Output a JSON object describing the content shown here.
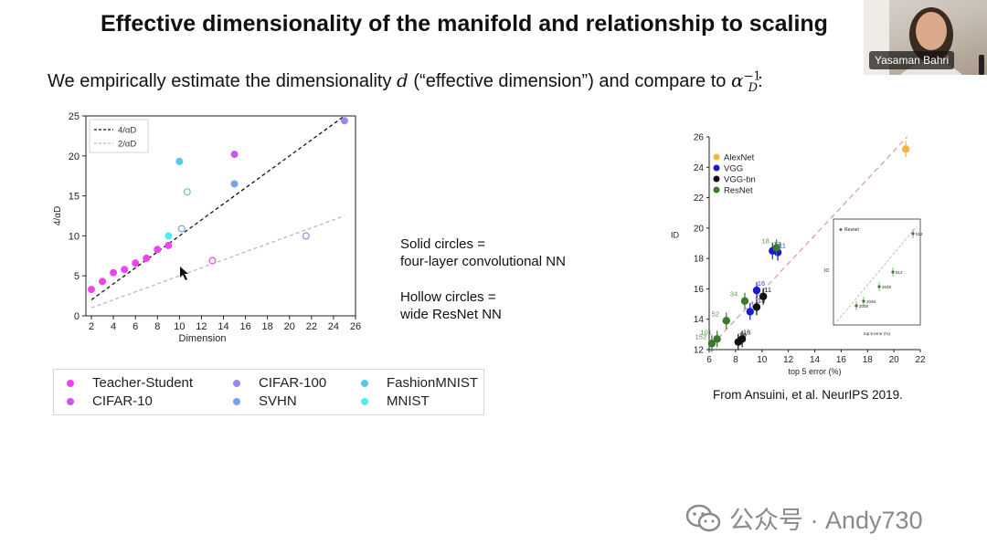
{
  "slide": {
    "title": "Effective dimensionality of the manifold and relationship to scaling",
    "subtitle_pre": "We empirically estimate the dimensionality ",
    "subtitle_var": "d",
    "subtitle_mid": " (“effective dimension”) and compare to ",
    "subtitle_alpha": "α",
    "subtitle_sup": "−1",
    "subtitle_sub": "D",
    "subtitle_end": ":"
  },
  "video": {
    "participant_name": "Yasaman Bahri"
  },
  "description": {
    "solid_line1": "Solid circles  =",
    "solid_line2": "four-layer convolutional NN",
    "hollow_line1": "Hollow circles =",
    "hollow_line2": "wide ResNet NN"
  },
  "legend": [
    {
      "label": "Teacher-Student",
      "color": "#ee44ee"
    },
    {
      "label": "CIFAR-10",
      "color": "#cc55ee"
    },
    {
      "label": "CIFAR-100",
      "color": "#9988ee"
    },
    {
      "label": "SVHN",
      "color": "#77a2ee"
    },
    {
      "label": "FashionMNIST",
      "color": "#55c8ee"
    },
    {
      "label": "MNIST",
      "color": "#55eaf0"
    }
  ],
  "chart_data": [
    {
      "type": "scatter",
      "xlabel": "Dimension",
      "ylabel": "4/αD",
      "xlim": [
        1.5,
        26
      ],
      "ylim": [
        0,
        25
      ],
      "xticks": [
        "2",
        "4",
        "6",
        "8",
        "10",
        "12",
        "14",
        "16",
        "18",
        "20",
        "22",
        "24",
        "26"
      ],
      "yticks": [
        "0",
        "5",
        "10",
        "15",
        "20",
        "25"
      ],
      "lines": [
        {
          "name": "4/αD",
          "from": [
            2,
            2
          ],
          "to": [
            25,
            25
          ],
          "style": "dashed",
          "color": "#111111"
        },
        {
          "name": "2/αD",
          "from": [
            2,
            1
          ],
          "to": [
            25,
            12.5
          ],
          "style": "dashed",
          "color": "#bbbbbb"
        }
      ],
      "series": [
        {
          "name": "Teacher-Student",
          "color": "#ee44ee",
          "filled": true,
          "points": [
            [
              2,
              3.3
            ],
            [
              3,
              4.3
            ],
            [
              4,
              5.4
            ],
            [
              5,
              5.8
            ],
            [
              6,
              6.6
            ],
            [
              7,
              7.2
            ],
            [
              8,
              8.3
            ],
            [
              9,
              8.8
            ]
          ]
        },
        {
          "name": "CIFAR-10",
          "color": "#cc55ee",
          "filled": true,
          "points": [
            [
              15,
              20.2
            ]
          ]
        },
        {
          "name": "CIFAR-10",
          "color": "#cc55ee",
          "filled": false,
          "points": [
            [
              13,
              6.9
            ]
          ]
        },
        {
          "name": "CIFAR-100",
          "color": "#9988ee",
          "filled": true,
          "points": [
            [
              25,
              24.4
            ]
          ]
        },
        {
          "name": "CIFAR-100",
          "color": "#9988ee",
          "filled": false,
          "points": [
            [
              21.5,
              10
            ]
          ]
        },
        {
          "name": "SVHN",
          "color": "#77a2ee",
          "filled": true,
          "points": [
            [
              15,
              16.5
            ]
          ]
        },
        {
          "name": "SVHN",
          "color": "#77a2ee",
          "filled": false,
          "points": [
            [
              10.2,
              10.9
            ]
          ]
        },
        {
          "name": "FashionMNIST",
          "color": "#55c8ee",
          "filled": true,
          "points": [
            [
              10,
              19.3
            ]
          ]
        },
        {
          "name": "FashionMNIST",
          "color": "#55c8ee",
          "filled": false,
          "points": [
            [
              10.7,
              15.5
            ]
          ]
        },
        {
          "name": "MNIST",
          "color": "#55eaf0",
          "filled": true,
          "points": [
            [
              9,
              10
            ]
          ]
        }
      ]
    },
    {
      "type": "scatter",
      "xlabel": "top 5 error (%)",
      "ylabel": "ID",
      "xlim": [
        6,
        22
      ],
      "ylim": [
        12,
        26
      ],
      "xticks": [
        "6",
        "8",
        "10",
        "12",
        "14",
        "16",
        "18",
        "20",
        "22"
      ],
      "yticks": [
        "12",
        "14",
        "16",
        "18",
        "20",
        "22",
        "24",
        "26"
      ],
      "legend": [
        "AlexNet",
        "VGG",
        "VGG-bn",
        "ResNet"
      ],
      "fit_line": {
        "from": [
          6.2,
          12.3
        ],
        "to": [
          21,
          26
        ],
        "color": "#d8a0a8"
      },
      "series": [
        {
          "name": "AlexNet",
          "color": "#f0b840",
          "points": [
            [
              20.9,
              25.2,
              ""
            ]
          ]
        },
        {
          "name": "VGG",
          "color": "#1a1ad0",
          "points": [
            [
              9.1,
              14.5,
              "19"
            ],
            [
              9.6,
              15.9,
              "16"
            ],
            [
              10.8,
              18.5,
              "13"
            ],
            [
              11.2,
              18.4,
              "11"
            ]
          ]
        },
        {
          "name": "VGG-bn",
          "color": "#111111",
          "points": [
            [
              8.2,
              12.5,
              "19"
            ],
            [
              8.5,
              12.7,
              "16"
            ],
            [
              9.6,
              14.8,
              "13"
            ],
            [
              10.1,
              15.5,
              "11"
            ]
          ]
        },
        {
          "name": "ResNet",
          "color": "#3a7a2a",
          "points": [
            [
              6.2,
              12.4,
              "152"
            ],
            [
              6.6,
              12.7,
              "101"
            ],
            [
              7.3,
              13.9,
              "52"
            ],
            [
              8.7,
              15.2,
              "34"
            ],
            [
              11.1,
              18.7,
              "18"
            ]
          ]
        }
      ],
      "inset": {
        "legend": "Resnet",
        "ylabel": "ID",
        "xlabel": "top 5 error (%)",
        "point_labels": [
          "512",
          "512",
          "2048",
          "2048",
          "2048"
        ]
      }
    }
  ],
  "caption": "From Ansuini, et al. NeurIPS 2019.",
  "watermark": "公众号 · Andy730"
}
